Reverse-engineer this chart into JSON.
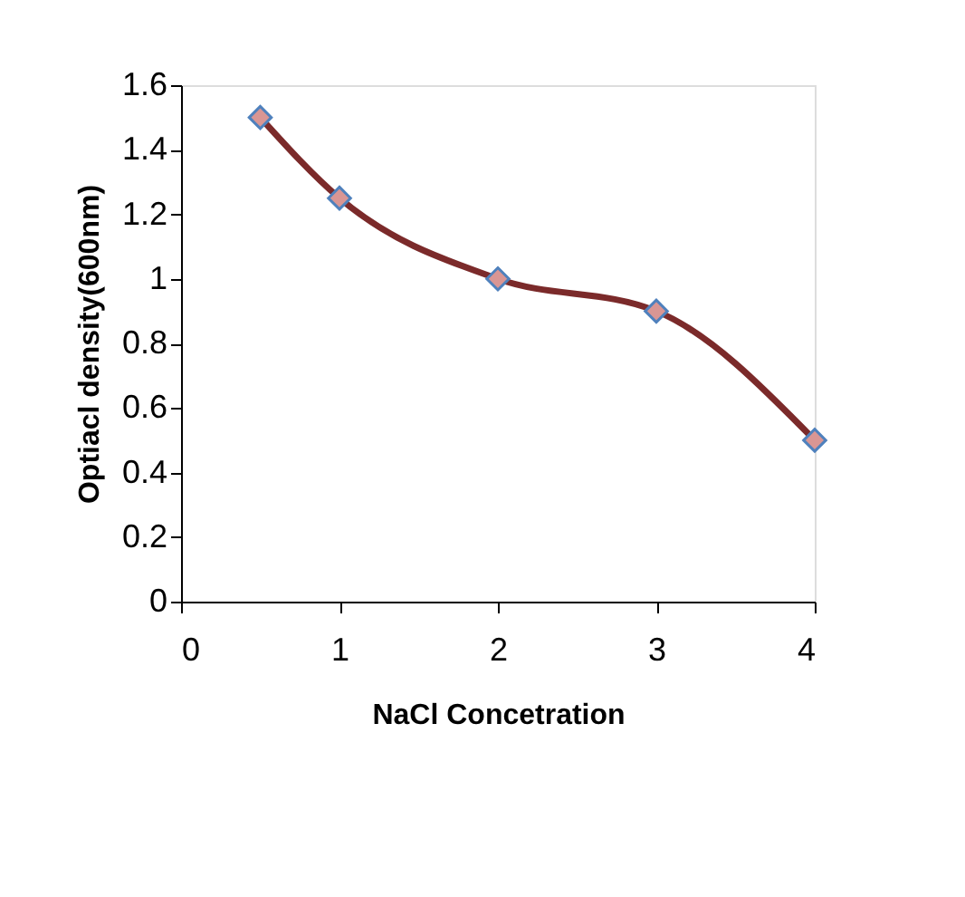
{
  "chart_data": {
    "type": "line",
    "xlabel": "NaCl Concetration",
    "ylabel": "Optiacl density(600nm)",
    "x": [
      0.5,
      1,
      2,
      3,
      4
    ],
    "series": [
      {
        "color": "#7b2a2a",
        "values": [
          1.5,
          1.25,
          1.0,
          0.9,
          0.5
        ]
      }
    ],
    "xlim": [
      0,
      4
    ],
    "xticks": [
      0,
      1,
      2,
      3,
      4
    ],
    "ylim": [
      0,
      1.6
    ],
    "yticks": [
      0,
      0.2,
      0.4,
      0.6,
      0.8,
      1,
      1.2,
      1.4,
      1.6
    ],
    "marker": "diamond",
    "line_style": "solid",
    "grid": false
  }
}
